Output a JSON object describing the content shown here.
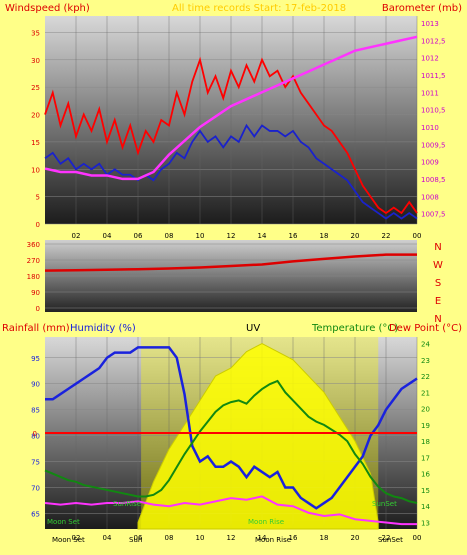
{
  "chart_data": [
    {
      "type": "line",
      "header": "All time records Start: 17-feb-2018",
      "ylabel_left": "Windspeed (kph)",
      "ylabel_right": "Barometer (mb)",
      "x_ticks": [
        "02",
        "04",
        "06",
        "08",
        "10",
        "12",
        "14",
        "16",
        "18",
        "20",
        "22",
        "00"
      ],
      "y_left_ticks": [
        0,
        5,
        10,
        15,
        20,
        25,
        30,
        35
      ],
      "y_left_range": [
        0,
        38
      ],
      "y_right_ticks": [
        "1007,5",
        "1008",
        "1008,5",
        "1009",
        "1009,5",
        "1010",
        "1010,5",
        "1011",
        "1011,5",
        "1012",
        "1012,5",
        "1013"
      ],
      "y_right_range": [
        1007.2,
        1013.2
      ],
      "x_range": [
        0,
        24
      ],
      "series": [
        {
          "name": "Wind gust",
          "color": "#ff0000",
          "x": [
            0,
            0.5,
            1,
            1.5,
            2,
            2.5,
            3,
            3.5,
            4,
            4.5,
            5,
            5.5,
            6,
            6.5,
            7,
            7.5,
            8,
            8.5,
            9,
            9.5,
            10,
            10.5,
            11,
            11.5,
            12,
            12.5,
            13,
            13.5,
            14,
            14.5,
            15,
            15.5,
            16,
            16.5,
            17,
            17.5,
            18,
            18.5,
            19,
            19.5,
            20,
            20.5,
            21,
            21.5,
            22,
            22.5,
            23,
            23.5,
            24
          ],
          "values": [
            20,
            24,
            18,
            22,
            16,
            20,
            17,
            21,
            15,
            19,
            14,
            18,
            13,
            17,
            15,
            19,
            18,
            24,
            20,
            26,
            30,
            24,
            27,
            23,
            28,
            25,
            29,
            26,
            30,
            27,
            28,
            25,
            27,
            24,
            22,
            20,
            18,
            17,
            15,
            13,
            10,
            7,
            5,
            3,
            2,
            3,
            2,
            4,
            2
          ]
        },
        {
          "name": "Wind speed",
          "color": "#1a22cc",
          "x": [
            0,
            0.5,
            1,
            1.5,
            2,
            2.5,
            3,
            3.5,
            4,
            4.5,
            5,
            5.5,
            6,
            6.5,
            7,
            7.5,
            8,
            8.5,
            9,
            9.5,
            10,
            10.5,
            11,
            11.5,
            12,
            12.5,
            13,
            13.5,
            14,
            14.5,
            15,
            15.5,
            16,
            16.5,
            17,
            17.5,
            18,
            18.5,
            19,
            19.5,
            20,
            20.5,
            21,
            21.5,
            22,
            22.5,
            23,
            23.5,
            24
          ],
          "values": [
            12,
            13,
            11,
            12,
            10,
            11,
            10,
            11,
            9,
            10,
            9,
            9,
            8,
            9,
            8,
            10,
            11,
            13,
            12,
            15,
            17,
            15,
            16,
            14,
            16,
            15,
            18,
            16,
            18,
            17,
            17,
            16,
            17,
            15,
            14,
            12,
            11,
            10,
            9,
            8,
            6,
            4,
            3,
            2,
            1,
            2,
            1,
            2,
            1
          ]
        },
        {
          "name": "Barometer",
          "color": "#ff33ff",
          "axis": "right",
          "x": [
            0,
            1,
            2,
            3,
            4,
            5,
            6,
            7,
            8,
            9,
            10,
            11,
            12,
            13,
            14,
            15,
            16,
            17,
            18,
            19,
            20,
            21,
            22,
            23,
            24
          ],
          "values": [
            1008.8,
            1008.7,
            1008.7,
            1008.6,
            1008.6,
            1008.5,
            1008.5,
            1008.7,
            1009.2,
            1009.6,
            1010.0,
            1010.3,
            1010.6,
            1010.8,
            1011.0,
            1011.2,
            1011.4,
            1011.6,
            1011.8,
            1012.0,
            1012.2,
            1012.3,
            1012.4,
            1012.5,
            1012.6
          ]
        }
      ]
    },
    {
      "type": "line",
      "y_ticks": [
        0,
        90,
        180,
        270,
        360
      ],
      "y_range": [
        0,
        360
      ],
      "x_range": [
        0,
        24
      ],
      "compass_labels": [
        "N",
        "W",
        "S",
        "E",
        "N"
      ],
      "series": [
        {
          "name": "Wind direction",
          "color": "#dd0000",
          "x": [
            0,
            2,
            4,
            6,
            8,
            10,
            12,
            14,
            16,
            18,
            20,
            22,
            24
          ],
          "values": [
            210,
            212,
            215,
            218,
            222,
            228,
            236,
            245,
            262,
            276,
            290,
            300,
            300
          ]
        }
      ]
    },
    {
      "type": "line",
      "title": "UV",
      "labels": [
        "Rainfall (mm)",
        "Humidity (%)",
        "UV",
        "Temperature (°C)",
        "Dew Point (°C)"
      ],
      "y_left_ticks": [
        65,
        70,
        75,
        80,
        85,
        90,
        95
      ],
      "y_left_range": [
        62,
        99
      ],
      "y_right_ticks": [
        13,
        14,
        15,
        16,
        17,
        18,
        19,
        20,
        21,
        22,
        23,
        24
      ],
      "y_right_range": [
        12.6,
        24.4
      ],
      "x_ticks": [
        "02",
        "04",
        "06",
        "08",
        "10",
        "12",
        "14",
        "16",
        "18",
        "20",
        "22",
        "00"
      ],
      "x_range": [
        0,
        24
      ],
      "rain_zero_label": "0",
      "rain_zero_value": 80.5,
      "sun_labels": {
        "sunrise": "SunRise",
        "sunset": "SunSet",
        "moonset": "Moon Set",
        "moonrise": "Moon Rise"
      },
      "bottom_labels": {
        "moonset": "Moon Set",
        "sunrise": "Sun",
        "moonrise": "Moon Rise",
        "sunset": "SunSet"
      },
      "daylight": {
        "start": 6.2,
        "end": 21.5
      },
      "series": [
        {
          "name": "Humidity",
          "color": "#1a22dd",
          "axis": "left",
          "x": [
            0,
            0.5,
            1,
            1.5,
            2,
            2.5,
            3,
            3.5,
            4,
            4.5,
            5,
            5.5,
            6,
            6.5,
            7,
            7.5,
            8,
            8.5,
            9,
            9.5,
            10,
            10.5,
            11,
            11.5,
            12,
            12.5,
            13,
            13.5,
            14,
            14.5,
            15,
            15.5,
            16,
            16.5,
            17,
            17.5,
            18,
            18.5,
            19,
            19.5,
            20,
            20.5,
            21,
            21.5,
            22,
            22.5,
            23,
            23.5,
            24
          ],
          "values": [
            87,
            87,
            88,
            89,
            90,
            91,
            92,
            93,
            95,
            96,
            96,
            96,
            97,
            97,
            97,
            97,
            97,
            95,
            88,
            78,
            75,
            76,
            74,
            74,
            75,
            74,
            72,
            74,
            73,
            72,
            73,
            70,
            70,
            68,
            67,
            66,
            67,
            68,
            70,
            72,
            74,
            76,
            80,
            82,
            85,
            87,
            89,
            90,
            91
          ]
        },
        {
          "name": "Temperature",
          "color": "#118811",
          "axis": "right",
          "x": [
            0,
            0.5,
            1,
            1.5,
            2,
            2.5,
            3,
            3.5,
            4,
            4.5,
            5,
            5.5,
            6,
            6.5,
            7,
            7.5,
            8,
            8.5,
            9,
            9.5,
            10,
            10.5,
            11,
            11.5,
            12,
            12.5,
            13,
            13.5,
            14,
            14.5,
            15,
            15.5,
            16,
            16.5,
            17,
            17.5,
            18,
            18.5,
            19,
            19.5,
            20,
            20.5,
            21,
            21.5,
            22,
            22.5,
            23,
            23.5,
            24
          ],
          "values": [
            16.2,
            16.0,
            15.8,
            15.6,
            15.5,
            15.3,
            15.2,
            15.1,
            15.0,
            14.9,
            14.8,
            14.7,
            14.6,
            14.6,
            14.7,
            15.0,
            15.6,
            16.4,
            17.2,
            17.9,
            18.6,
            19.2,
            19.8,
            20.2,
            20.4,
            20.5,
            20.3,
            20.8,
            21.2,
            21.5,
            21.7,
            21.0,
            20.5,
            20.0,
            19.5,
            19.2,
            19.0,
            18.7,
            18.4,
            18.0,
            17.2,
            16.6,
            15.8,
            15.2,
            14.8,
            14.6,
            14.5,
            14.3,
            14.2
          ]
        },
        {
          "name": "Dew Point",
          "color": "#ff33ff",
          "axis": "right",
          "x": [
            0,
            1,
            2,
            3,
            4,
            5,
            6,
            7,
            8,
            9,
            10,
            11,
            12,
            13,
            14,
            15,
            16,
            17,
            18,
            19,
            20,
            21,
            22,
            23,
            24
          ],
          "values": [
            14.2,
            14.1,
            14.2,
            14.1,
            14.2,
            14.2,
            14.3,
            14.1,
            14.0,
            14.2,
            14.1,
            14.3,
            14.5,
            14.4,
            14.6,
            14.1,
            14.0,
            13.6,
            13.4,
            13.5,
            13.2,
            13.1,
            13.0,
            12.9,
            12.9
          ]
        },
        {
          "name": "UV",
          "color": "#ffff00",
          "axis": "right",
          "x": [
            6,
            7,
            8,
            9,
            10,
            11,
            12,
            13,
            14,
            15,
            16,
            17,
            18,
            19,
            20,
            21,
            21.5
          ],
          "values": [
            13.0,
            15.5,
            17.5,
            19.0,
            20.5,
            22.0,
            22.5,
            23.5,
            24.0,
            23.5,
            23.0,
            22.0,
            21.0,
            19.5,
            18.0,
            16.0,
            13.0
          ]
        }
      ]
    }
  ]
}
